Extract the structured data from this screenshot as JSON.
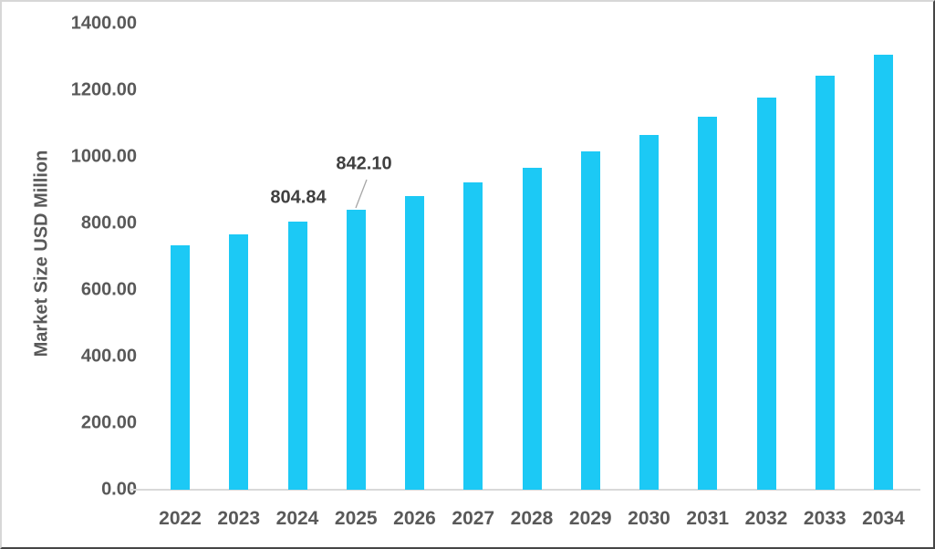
{
  "chart_data": {
    "type": "bar",
    "title": "",
    "ylabel": "Market Size USD Million",
    "xlabel": "",
    "categories": [
      "2022",
      "2023",
      "2024",
      "2025",
      "2026",
      "2027",
      "2028",
      "2029",
      "2030",
      "2031",
      "2032",
      "2033",
      "2034"
    ],
    "values": [
      734,
      767,
      804.84,
      842.1,
      882,
      923,
      967,
      1016,
      1067,
      1121,
      1177,
      1243,
      1307
    ],
    "ylim": [
      0,
      1400
    ],
    "ytick_step": 200,
    "yticks": [
      "0.00",
      "200.00",
      "400.00",
      "600.00",
      "800.00",
      "1000.00",
      "1200.00",
      "1400.00"
    ],
    "grid": false,
    "legend": "none",
    "data_labels": [
      {
        "category": "2024",
        "text": "804.84",
        "leader_line": false
      },
      {
        "category": "2025",
        "text": "842.10",
        "leader_line": true
      }
    ],
    "colors": {
      "bar": "#1cc9f5",
      "axis_text": "#595959",
      "data_label_text": "#404040",
      "axis_line": "#d9d9d9",
      "leader_line": "#a6a6a6"
    }
  }
}
